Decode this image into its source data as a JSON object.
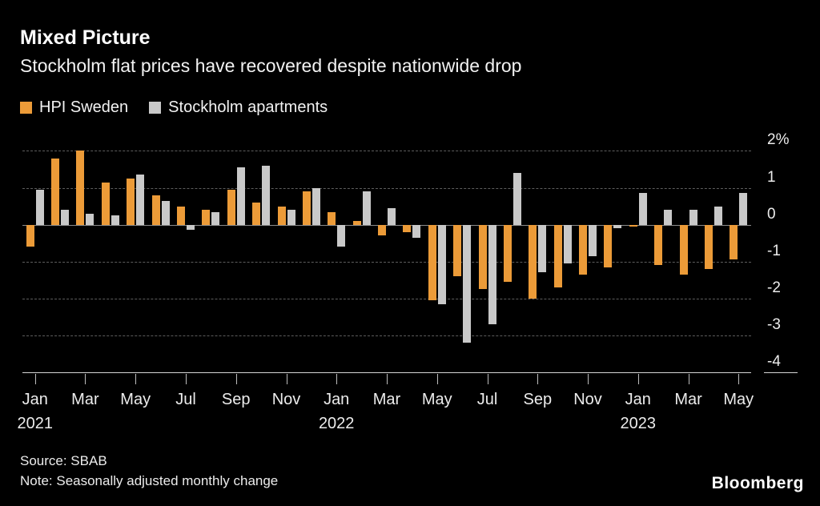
{
  "header": {
    "title": "Mixed Picture",
    "subtitle": "Stockholm flat prices have recovered despite nationwide drop"
  },
  "legend": {
    "items": [
      {
        "label": "HPI Sweden",
        "color": "#EC9B38"
      },
      {
        "label": "Stockholm apartments",
        "color": "#C9C9C9"
      }
    ]
  },
  "footer": {
    "source": "Source: SBAB",
    "note": "Note: Seasonally adjusted monthly change",
    "brand": "Bloomberg"
  },
  "chart_data": {
    "type": "bar",
    "title": "Mixed Picture",
    "subtitle": "Stockholm flat prices have recovered despite nationwide drop",
    "ylabel": "Seasonally adjusted monthly change (%)",
    "ylim": [
      -4,
      2
    ],
    "grid": "dashed-horizontal",
    "legend_position": "top-left",
    "categories": [
      "Jan 2021",
      "Feb 2021",
      "Mar 2021",
      "Apr 2021",
      "May 2021",
      "Jun 2021",
      "Jul 2021",
      "Aug 2021",
      "Sep 2021",
      "Oct 2021",
      "Nov 2021",
      "Dec 2021",
      "Jan 2022",
      "Feb 2022",
      "Mar 2022",
      "Apr 2022",
      "May 2022",
      "Jun 2022",
      "Jul 2022",
      "Aug 2022",
      "Sep 2022",
      "Oct 2022",
      "Nov 2022",
      "Dec 2022",
      "Jan 2023",
      "Feb 2023",
      "Mar 2023",
      "Apr 2023",
      "May 2023"
    ],
    "series": [
      {
        "name": "HPI Sweden",
        "color": "#EC9B38",
        "values": [
          -0.6,
          1.8,
          2.0,
          1.15,
          1.25,
          0.8,
          0.5,
          0.4,
          0.95,
          0.6,
          0.5,
          0.9,
          0.35,
          0.1,
          -0.3,
          -0.2,
          -2.05,
          -1.4,
          -1.75,
          -1.55,
          -2.0,
          -1.7,
          -1.35,
          -1.15,
          -0.05,
          -1.1,
          -1.35,
          -1.2,
          -0.95
        ]
      },
      {
        "name": "Stockholm apartments",
        "color": "#C9C9C9",
        "values": [
          0.95,
          0.4,
          0.3,
          0.25,
          1.35,
          0.65,
          -0.15,
          0.35,
          1.55,
          1.6,
          0.4,
          1.0,
          -0.6,
          0.9,
          0.45,
          -0.35,
          -2.15,
          -3.2,
          -2.7,
          1.4,
          -1.3,
          -1.05,
          -0.85,
          -0.1,
          0.85,
          0.4,
          0.4,
          0.5,
          0.85
        ]
      }
    ],
    "yticks": [
      2,
      1,
      0,
      -1,
      -2,
      -3,
      -4
    ],
    "ytick_labels": [
      "2%",
      "1",
      "0",
      "-1",
      "-2",
      "-3",
      "-4"
    ],
    "xticks": [
      {
        "index": 0,
        "label": "Jan"
      },
      {
        "index": 2,
        "label": "Mar"
      },
      {
        "index": 4,
        "label": "May"
      },
      {
        "index": 6,
        "label": "Jul"
      },
      {
        "index": 8,
        "label": "Sep"
      },
      {
        "index": 10,
        "label": "Nov"
      },
      {
        "index": 12,
        "label": "Jan"
      },
      {
        "index": 14,
        "label": "Mar"
      },
      {
        "index": 16,
        "label": "May"
      },
      {
        "index": 18,
        "label": "Jul"
      },
      {
        "index": 20,
        "label": "Sep"
      },
      {
        "index": 22,
        "label": "Nov"
      },
      {
        "index": 24,
        "label": "Jan"
      },
      {
        "index": 26,
        "label": "Mar"
      },
      {
        "index": 28,
        "label": "May"
      }
    ],
    "year_labels": [
      {
        "index": 0,
        "label": "2021"
      },
      {
        "index": 12,
        "label": "2022"
      },
      {
        "index": 24,
        "label": "2023"
      }
    ]
  }
}
